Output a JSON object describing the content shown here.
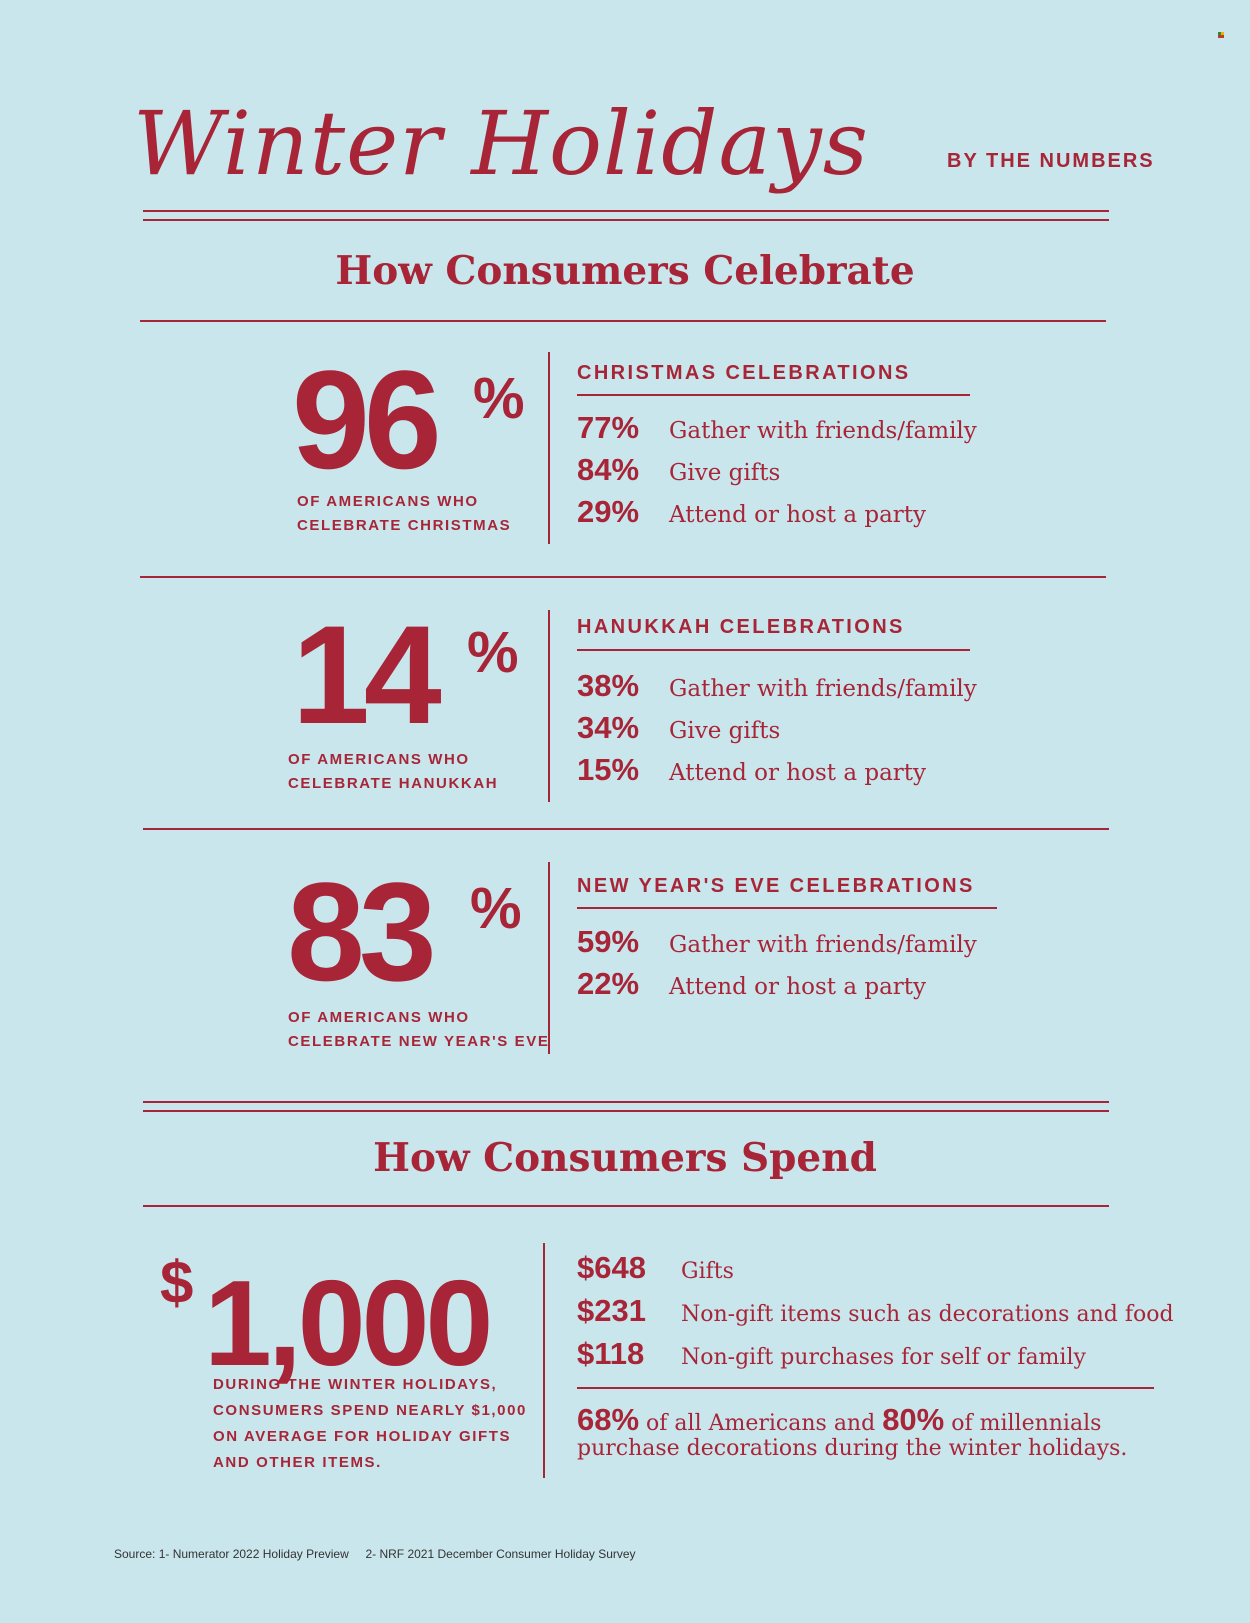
{
  "header": {
    "title": "Winter Holidays",
    "subtitle": "BY THE NUMBERS"
  },
  "celebrate": {
    "section_title": "How Consumers Celebrate",
    "holidays": [
      {
        "big": "96",
        "pct": "%",
        "caption_line1": "OF AMERICANS WHO",
        "caption_line2": "CELEBRATE  CHRISTMAS",
        "header": "CHRISTMAS CELEBRATIONS",
        "stats": [
          {
            "num": "77%",
            "label": "Gather with friends/family"
          },
          {
            "num": "84%",
            "label": "Give gifts"
          },
          {
            "num": "29%",
            "label": "Attend or host a party"
          }
        ]
      },
      {
        "big": "14",
        "pct": "%",
        "caption_line1": "OF AMERICANS WHO",
        "caption_line2": "CELEBRATE  HANUKKAH",
        "header": "HANUKKAH CELEBRATIONS",
        "stats": [
          {
            "num": "38%",
            "label": "Gather with friends/family"
          },
          {
            "num": "34%",
            "label": "Give gifts"
          },
          {
            "num": "15%",
            "label": "Attend or host a party"
          }
        ]
      },
      {
        "big": "83",
        "pct": "%",
        "caption_line1": "OF AMERICANS WHO",
        "caption_line2": "CELEBRATE  NEW YEAR'S EVE",
        "header": "NEW YEAR'S EVE CELEBRATIONS",
        "stats": [
          {
            "num": "59%",
            "label": "Gather with friends/family"
          },
          {
            "num": "22%",
            "label": "Attend or host a party"
          }
        ]
      }
    ]
  },
  "spend": {
    "section_title": "How Consumers Spend",
    "dollar": "$",
    "big": "1,000",
    "caption": [
      "DURING THE WINTER HOLIDAYS,",
      "CONSUMERS SPEND NEARLY $1,000",
      "ON AVERAGE FOR HOLIDAY GIFTS",
      "AND OTHER ITEMS."
    ],
    "rows": [
      {
        "num": "$648",
        "label": "Gifts"
      },
      {
        "num": "$231",
        "label": "Non-gift items such as decorations and food"
      },
      {
        "num": "$118",
        "label": "Non-gift purchases for self or family"
      }
    ],
    "decorations": {
      "pct1": "68%",
      "text1": " of all Americans and ",
      "pct2": "80%",
      "text2": " of millennials",
      "line2": "purchase decorations during the winter holidays."
    }
  },
  "footer": {
    "source": "Source: 1- Numerator 2022 Holiday Preview     2- NRF 2021 December Consumer Holiday Survey"
  },
  "colors": {
    "background": "#c8e6ec",
    "accent": "#a82538"
  }
}
